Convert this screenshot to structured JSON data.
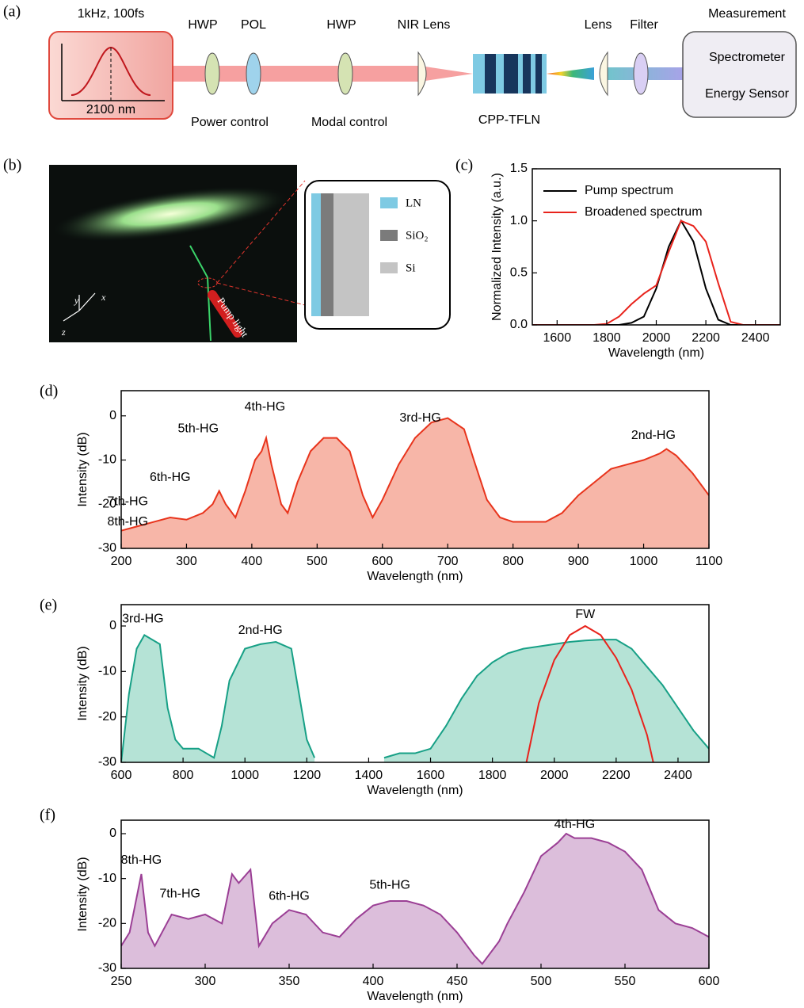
{
  "panel_labels": [
    "(a)",
    "(b)",
    "(c)",
    "(d)",
    "(e)",
    "(f)"
  ],
  "diagram": {
    "source_label": "1kHz, 100fs",
    "center_wavelength": "2100 nm",
    "components": [
      "HWP",
      "POL",
      "HWP",
      "NIR Lens",
      "Lens",
      "Filter"
    ],
    "groups": [
      "Power control",
      "Modal control",
      "CPP-TFLN"
    ],
    "measurement": {
      "title": "Measurement",
      "items": [
        "Spectrometer",
        "Energy Sensor"
      ]
    }
  },
  "photo": {
    "axes": [
      "y",
      "x",
      "z"
    ],
    "pump_label": "Pump light",
    "layers": [
      "LN",
      "SiO₂",
      "Si"
    ]
  },
  "chart_data": [
    {
      "type": "line",
      "xlabel": "Wavelength (nm)",
      "ylabel": "Normalized Intensity (a.u.)",
      "x": [
        1500,
        1550,
        1600,
        1650,
        1700,
        1750,
        1800,
        1850,
        1900,
        1950,
        2000,
        2050,
        2100,
        2150,
        2200,
        2250,
        2300,
        2350,
        2400,
        2450,
        2500
      ],
      "series": [
        {
          "name": "Pump spectrum",
          "color": "#000000",
          "values": [
            0,
            0,
            0,
            0,
            0,
            0,
            0,
            0,
            0.02,
            0.08,
            0.35,
            0.75,
            1.0,
            0.8,
            0.35,
            0.05,
            0,
            0,
            0,
            0,
            0
          ]
        },
        {
          "name": "Broadened spectrum",
          "color": "#e8231c",
          "values": [
            0,
            0,
            0,
            0,
            0,
            0,
            0.01,
            0.08,
            0.2,
            0.3,
            0.38,
            0.7,
            1.0,
            0.95,
            0.8,
            0.4,
            0.03,
            0,
            0,
            0,
            0
          ]
        }
      ],
      "xlim": [
        1500,
        2500
      ],
      "xticks": [
        1600,
        1800,
        2000,
        2200,
        2400
      ],
      "ylim": [
        0,
        1.5
      ],
      "yticks": [
        {
          "value": 0,
          "label": "0.0"
        },
        0.5,
        {
          "value": 1,
          "label": "1.0"
        },
        1.5
      ],
      "legend": "upper left"
    },
    {
      "type": "area",
      "xlabel": "Wavelength (nm)",
      "ylabel": "Intensity (dB)",
      "x": [
        200,
        225,
        250,
        275,
        300,
        325,
        340,
        350,
        360,
        375,
        390,
        405,
        415,
        422,
        430,
        445,
        455,
        470,
        490,
        510,
        530,
        550,
        570,
        585,
        600,
        625,
        650,
        675,
        700,
        725,
        740,
        760,
        780,
        800,
        825,
        850,
        875,
        900,
        925,
        950,
        975,
        1000,
        1025,
        1035,
        1050,
        1075,
        1100
      ],
      "series": [
        {
          "color": "#e8341c",
          "fill": "#f7b6a8",
          "values": [
            -26,
            -25,
            -24,
            -23,
            -23.5,
            -22,
            -20,
            -17,
            -20,
            -23,
            -17,
            -10,
            -8,
            -5,
            -11,
            -20,
            -22,
            -15,
            -8,
            -5,
            -5,
            -8,
            -18,
            -23,
            -19,
            -11,
            -5,
            -1.5,
            -0.5,
            -3,
            -10,
            -19,
            -23,
            -24,
            -24,
            -24,
            -22,
            -18,
            -15,
            -12,
            -11,
            -10,
            -8.5,
            -7.5,
            -9,
            -13,
            -18
          ]
        }
      ],
      "annotations": [
        "7th-HG",
        "8th-HG",
        "6th-HG",
        "5th-HG",
        "4th-HG",
        "3rd-HG",
        "2nd-HG"
      ],
      "xlim": [
        200,
        1100
      ],
      "xticks": [
        200,
        300,
        400,
        500,
        600,
        700,
        800,
        900,
        1000,
        1100
      ],
      "ylim": [
        -30,
        5.7
      ],
      "yticks": [
        -30,
        -20,
        -10,
        0
      ]
    },
    {
      "type": "area",
      "xlabel": "Wavelength (nm)",
      "ylabel": "Intensity (dB)",
      "series": [
        {
          "color": "#17a086",
          "fill": "#b5e3d6",
          "x": [
            600,
            625,
            650,
            675,
            700,
            725,
            750,
            775,
            800,
            850,
            900,
            925,
            950,
            1000,
            1050,
            1100,
            1150,
            1175,
            1200,
            1225,
            1250,
            1300,
            1350,
            1400,
            1450,
            1500,
            1550,
            1600,
            1650,
            1700,
            1750,
            1800,
            1850,
            1900,
            1950,
            2000,
            2050,
            2100,
            2150,
            2200,
            2250,
            2300,
            2350,
            2400,
            2450,
            2500
          ],
          "values": [
            -30,
            -15,
            -5,
            -2,
            -3,
            -4,
            -18,
            -25,
            -27,
            -27,
            -29,
            -22,
            -12,
            -5,
            -4,
            -3.5,
            -5,
            -15,
            -25,
            -29,
            null,
            null,
            null,
            null,
            -29,
            -28,
            -28,
            -27,
            -22,
            -16,
            -11,
            -8,
            -6,
            -5,
            -4.5,
            -4,
            -3.5,
            -3.2,
            -3,
            -3,
            -5,
            -9,
            -13,
            -18,
            -23,
            -27
          ]
        },
        {
          "color": "#e8231c",
          "x": [
            1910,
            1950,
            2000,
            2050,
            2100,
            2150,
            2200,
            2250,
            2300,
            2320
          ],
          "values": [
            -30,
            -17,
            -7.5,
            -2,
            0,
            -2,
            -7,
            -14,
            -24,
            -30
          ]
        }
      ],
      "annotations": [
        "3rd-HG",
        "2nd-HG",
        "FW"
      ],
      "xlim": [
        600,
        2500
      ],
      "xticks": [
        600,
        800,
        1000,
        1200,
        1400,
        1600,
        1800,
        2000,
        2200,
        2400
      ],
      "ylim": [
        -30,
        4.7
      ],
      "yticks": [
        -30,
        -20,
        -10,
        0
      ]
    },
    {
      "type": "area",
      "xlabel": "Wavelength (nm)",
      "ylabel": "Intensity (dB)",
      "x": [
        250,
        255,
        262,
        266,
        270,
        280,
        290,
        300,
        310,
        316,
        320,
        327,
        332,
        340,
        350,
        360,
        370,
        380,
        390,
        400,
        410,
        420,
        430,
        440,
        450,
        460,
        465,
        475,
        480,
        490,
        500,
        510,
        515,
        520,
        530,
        540,
        550,
        560,
        570,
        580,
        590,
        600
      ],
      "series": [
        {
          "color": "#9b3f95",
          "fill": "#dcbedb",
          "values": [
            -25,
            -22,
            -9,
            -22,
            -25,
            -18,
            -19,
            -18,
            -20,
            -9,
            -11,
            -8,
            -25,
            -20,
            -17,
            -18,
            -22,
            -23,
            -19,
            -16,
            -15,
            -15,
            -16,
            -18,
            -22,
            -27,
            -29,
            -24,
            -20,
            -13,
            -5,
            -2,
            0,
            -1,
            -1,
            -2,
            -4,
            -8,
            -17,
            -20,
            -21,
            -23
          ]
        }
      ],
      "annotations": [
        "8th-HG",
        "7th-HG",
        "6th-HG",
        "5th-HG",
        "4th-HG"
      ],
      "xlim": [
        250,
        600
      ],
      "xticks": [
        250,
        300,
        350,
        400,
        450,
        500,
        550,
        600
      ],
      "ylim": [
        -30,
        3
      ],
      "yticks": [
        -30,
        -20,
        -10,
        0
      ]
    }
  ]
}
